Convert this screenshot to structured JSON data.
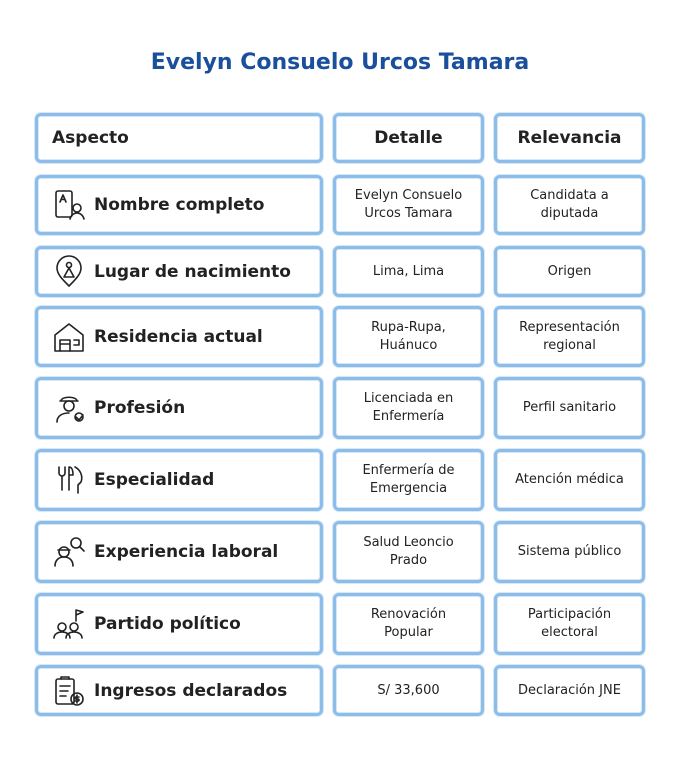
{
  "title": "Evelyn Consuelo Urcos Tamara",
  "table": {
    "header": [
      "Aspecto",
      "Detalle",
      "Relevancia"
    ],
    "rows": [
      [
        "Nombre completo",
        "Evelyn Consuelo Urcos Tamara",
        "Candidata a diputada"
      ],
      [
        "Lugar de nacimiento",
        "Lima, Lima",
        "Origen"
      ],
      [
        "Residencia actual",
        "Rupa-Rupa, Huánuco",
        "Representación regional"
      ],
      [
        "Profesión",
        "Licenciada en Enfermería",
        "Perfil sanitario"
      ],
      [
        "Especialidad",
        "Enfermería de Emergencia",
        "Atención médica"
      ],
      [
        "Experiencia laboral",
        "Salud Leoncio Prado",
        "Sistema público"
      ],
      [
        "Partido político",
        "Renovación Popular",
        "Participación electoral"
      ],
      [
        "Ingresos declarados",
        "S/ 33,600",
        "Declaración JNE"
      ]
    ]
  }
}
